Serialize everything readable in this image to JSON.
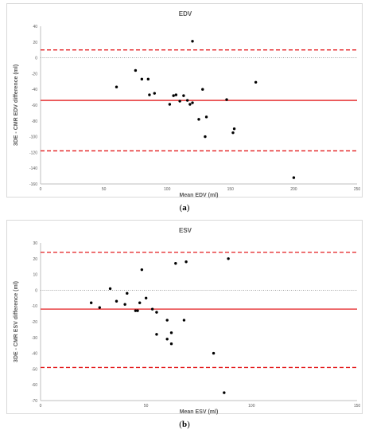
{
  "captions": {
    "a": "a",
    "b": "b"
  },
  "chart_data": [
    {
      "type": "scatter",
      "title": "EDV",
      "xlabel": "Mean EDV (ml)",
      "ylabel": "3DE - CMR EDV difference (ml)",
      "xlim": [
        0,
        250
      ],
      "ylim": [
        -160,
        40
      ],
      "xticks": [
        0,
        50,
        100,
        150,
        200,
        250
      ],
      "yticks": [
        -160,
        -140,
        -120,
        -100,
        -80,
        -60,
        -40,
        -20,
        0,
        20,
        40
      ],
      "grid": false,
      "reference_lines": {
        "zero": 0,
        "mean_bias": -54,
        "lower_loa": -118,
        "upper_loa": 10
      },
      "line_colors": {
        "zero": "#7f7f7f",
        "bias": "#e31a1c",
        "loa": "#e31a1c"
      },
      "points": [
        [
          60,
          -37
        ],
        [
          75,
          -16
        ],
        [
          80,
          -27
        ],
        [
          85,
          -27
        ],
        [
          86,
          -47
        ],
        [
          90,
          -45
        ],
        [
          102,
          -59
        ],
        [
          105,
          -48
        ],
        [
          107,
          -47
        ],
        [
          110,
          -55
        ],
        [
          113,
          -48
        ],
        [
          116,
          -54
        ],
        [
          118,
          -59
        ],
        [
          120,
          -57
        ],
        [
          120,
          21
        ],
        [
          125,
          -78
        ],
        [
          128,
          -40
        ],
        [
          130,
          -100
        ],
        [
          131,
          -75
        ],
        [
          147,
          -53
        ],
        [
          152,
          -95
        ],
        [
          153,
          -90
        ],
        [
          170,
          -31
        ],
        [
          200,
          -152
        ]
      ]
    },
    {
      "type": "scatter",
      "title": "ESV",
      "xlabel": "Mean ESV (ml)",
      "ylabel": "3DE - CMR ESV difference (ml)",
      "xlim": [
        0,
        150
      ],
      "ylim": [
        -70,
        30
      ],
      "xticks": [
        0,
        50,
        100,
        150
      ],
      "yticks": [
        -70,
        -60,
        -50,
        -40,
        -30,
        -20,
        -10,
        0,
        10,
        20,
        30
      ],
      "grid": false,
      "reference_lines": {
        "zero": 0,
        "mean_bias": -12,
        "lower_loa": -49,
        "upper_loa": 24
      },
      "line_colors": {
        "zero": "#7f7f7f",
        "bias": "#e31a1c",
        "loa": "#e31a1c"
      },
      "points": [
        [
          24,
          -8
        ],
        [
          28,
          -11
        ],
        [
          33,
          1
        ],
        [
          36,
          -7
        ],
        [
          40,
          -9
        ],
        [
          41,
          -2
        ],
        [
          45,
          -13
        ],
        [
          46,
          -13
        ],
        [
          47,
          -8
        ],
        [
          48,
          13
        ],
        [
          50,
          -5
        ],
        [
          53,
          -12
        ],
        [
          55,
          -14
        ],
        [
          55,
          -28
        ],
        [
          60,
          -31
        ],
        [
          60,
          -19
        ],
        [
          62,
          -27
        ],
        [
          62,
          -34
        ],
        [
          64,
          17
        ],
        [
          68,
          -19
        ],
        [
          69,
          18
        ],
        [
          82,
          -40
        ],
        [
          87,
          -65
        ],
        [
          89,
          20
        ]
      ]
    }
  ]
}
